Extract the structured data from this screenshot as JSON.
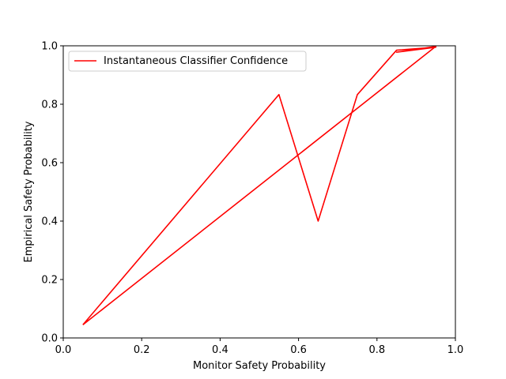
{
  "chart_data": {
    "type": "line",
    "title": "",
    "xlabel": "Monitor Safety Probability",
    "ylabel": "Empirical Safety Probability",
    "xlim": [
      0.0,
      1.0
    ],
    "ylim": [
      0.0,
      1.0
    ],
    "xticks": [
      "0.0",
      "0.2",
      "0.4",
      "0.6",
      "0.8",
      "1.0"
    ],
    "yticks": [
      "0.0",
      "0.2",
      "0.4",
      "0.6",
      "0.8",
      "1.0"
    ],
    "grid": false,
    "legend_position": "upper-left",
    "series": [
      {
        "name": "Instantaneous Classifier Confidence",
        "color": "#ff0000",
        "points": [
          [
            0.05,
            0.045
          ],
          [
            0.55,
            0.833
          ],
          [
            0.65,
            0.4
          ],
          [
            0.75,
            0.833
          ],
          [
            0.85,
            0.985
          ],
          [
            0.95,
            0.995
          ],
          [
            0.85,
            0.978
          ],
          [
            0.95,
            0.998
          ],
          [
            0.05,
            0.045
          ]
        ]
      }
    ]
  }
}
